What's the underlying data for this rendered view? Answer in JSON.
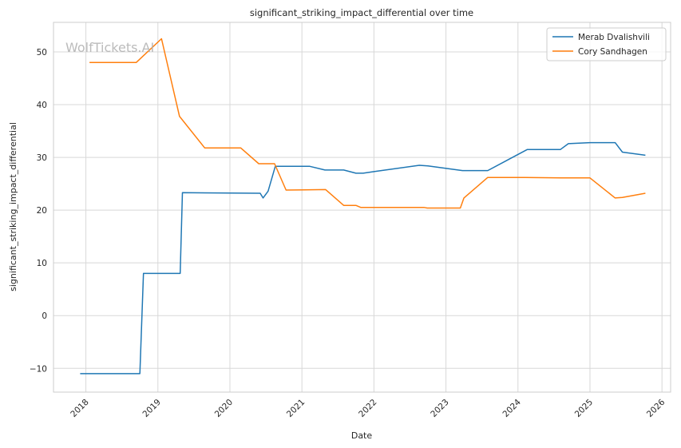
{
  "watermark": "WolfTickets.AI",
  "chart_data": {
    "type": "line",
    "title": "significant_striking_impact_differential over time",
    "xlabel": "Date",
    "ylabel": "significant_striking_impact_differential",
    "xlim": [
      2017.55,
      2026.12
    ],
    "ylim": [
      -14.5,
      55.6
    ],
    "x_ticks": [
      2018,
      2019,
      2020,
      2021,
      2022,
      2023,
      2024,
      2025,
      2026
    ],
    "x_tick_labels": [
      "2018",
      "2019",
      "2020",
      "2021",
      "2022",
      "2023",
      "2024",
      "2025",
      "2026"
    ],
    "y_ticks": [
      -10,
      0,
      10,
      20,
      30,
      40,
      50
    ],
    "y_tick_labels": [
      "−10",
      "0",
      "10",
      "20",
      "30",
      "40",
      "50"
    ],
    "grid": true,
    "legend_position": "top-right",
    "series": [
      {
        "name": "Merab Dvalishvili",
        "color": "#1f77b4",
        "points": [
          [
            2017.92,
            -11.0
          ],
          [
            2018.75,
            -11.0
          ],
          [
            2018.8,
            8.0
          ],
          [
            2019.31,
            8.0
          ],
          [
            2019.34,
            23.3
          ],
          [
            2020.42,
            23.2
          ],
          [
            2020.46,
            22.3
          ],
          [
            2020.53,
            23.6
          ],
          [
            2020.63,
            28.3
          ],
          [
            2021.11,
            28.3
          ],
          [
            2021.32,
            27.6
          ],
          [
            2021.58,
            27.6
          ],
          [
            2021.75,
            27.0
          ],
          [
            2021.85,
            27.0
          ],
          [
            2022.0,
            27.3
          ],
          [
            2022.63,
            28.5
          ],
          [
            2022.75,
            28.4
          ],
          [
            2023.23,
            27.5
          ],
          [
            2023.58,
            27.5
          ],
          [
            2024.13,
            31.5
          ],
          [
            2024.59,
            31.5
          ],
          [
            2024.7,
            32.6
          ],
          [
            2025.0,
            32.8
          ],
          [
            2025.35,
            32.8
          ],
          [
            2025.45,
            31.0
          ],
          [
            2025.77,
            30.4
          ]
        ]
      },
      {
        "name": "Cory Sandhagen",
        "color": "#ff7f0e",
        "points": [
          [
            2018.05,
            48.0
          ],
          [
            2018.7,
            48.0
          ],
          [
            2019.05,
            52.5
          ],
          [
            2019.3,
            37.8
          ],
          [
            2019.65,
            31.8
          ],
          [
            2020.15,
            31.8
          ],
          [
            2020.4,
            28.8
          ],
          [
            2020.62,
            28.8
          ],
          [
            2020.78,
            23.8
          ],
          [
            2021.33,
            23.9
          ],
          [
            2021.58,
            20.9
          ],
          [
            2021.75,
            20.9
          ],
          [
            2021.82,
            20.5
          ],
          [
            2022.7,
            20.5
          ],
          [
            2022.74,
            20.4
          ],
          [
            2023.2,
            20.4
          ],
          [
            2023.25,
            22.3
          ],
          [
            2023.58,
            26.2
          ],
          [
            2024.1,
            26.2
          ],
          [
            2024.6,
            26.1
          ],
          [
            2025.0,
            26.1
          ],
          [
            2025.35,
            22.3
          ],
          [
            2025.45,
            22.4
          ],
          [
            2025.77,
            23.2
          ]
        ]
      }
    ]
  }
}
